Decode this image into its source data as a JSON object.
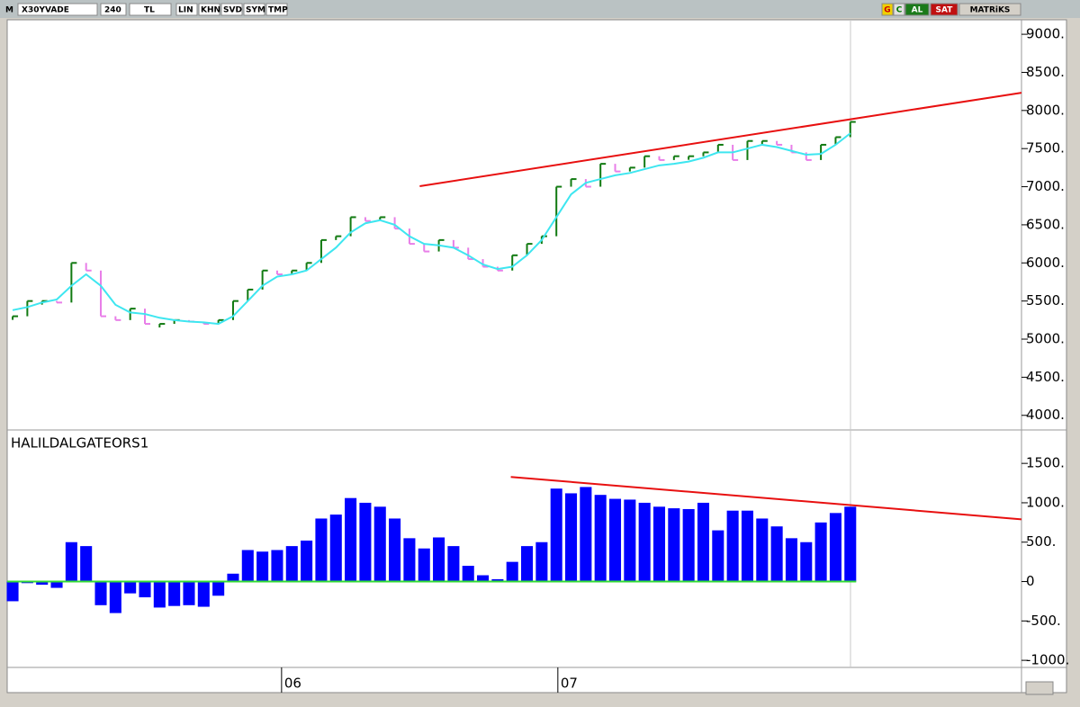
{
  "toolbar": {
    "menu": "M",
    "symbol": "X30YVADE",
    "period": "240",
    "currency": "TL",
    "buttons": [
      "LIN",
      "KHN",
      "SVD",
      "SYM",
      "TMP"
    ],
    "right_buttons": [
      "G",
      "C",
      "AL",
      "SAT",
      "MATRiKS"
    ]
  },
  "chart_data": [
    {
      "type": "ohlc",
      "xlim": [
        -0.37,
        68.65
      ],
      "ylim": [
        3820,
        9190
      ],
      "yticks": [
        {
          "value": 4000,
          "label": "4000."
        },
        {
          "value": 4500,
          "label": "4500."
        },
        {
          "value": 5000,
          "label": "5000."
        },
        {
          "value": 5500,
          "label": "5500."
        },
        {
          "value": 6000,
          "label": "6000."
        },
        {
          "value": 6500,
          "label": "6500."
        },
        {
          "value": 7000,
          "label": "7000."
        },
        {
          "value": 7500,
          "label": "7500."
        },
        {
          "value": 8000,
          "label": "8000."
        },
        {
          "value": 8500,
          "label": "8500."
        },
        {
          "value": 9000,
          "label": "9000."
        }
      ],
      "series": [
        {
          "color_up": "#117a11",
          "color_down": "#e87ee8",
          "values": [
            5300,
            5500,
            5500,
            5480,
            6000,
            5900,
            5300,
            5250,
            5400,
            5200,
            5200,
            5250,
            5230,
            5200,
            5250,
            5500,
            5650,
            5900,
            5850,
            5900,
            6000,
            6300,
            6350,
            6600,
            6550,
            6600,
            6450,
            6250,
            6150,
            6300,
            6200,
            6050,
            5950,
            5900,
            6100,
            6250,
            6350,
            7000,
            7100,
            7000,
            7300,
            7200,
            7250,
            7400,
            7350,
            7400,
            7400,
            7450,
            7550,
            7350,
            7600,
            7600,
            7550,
            7450,
            7350,
            7550,
            7650,
            7850
          ]
        },
        {
          "color": "#3ee6f0",
          "values": [
            5380,
            5420,
            5480,
            5520,
            5700,
            5850,
            5700,
            5450,
            5350,
            5330,
            5280,
            5250,
            5230,
            5220,
            5200,
            5300,
            5500,
            5700,
            5820,
            5850,
            5900,
            6050,
            6200,
            6400,
            6520,
            6560,
            6500,
            6350,
            6250,
            6230,
            6200,
            6100,
            5980,
            5920,
            5950,
            6100,
            6300,
            6600,
            6900,
            7050,
            7100,
            7150,
            7180,
            7230,
            7280,
            7300,
            7330,
            7380,
            7450,
            7450,
            7500,
            7550,
            7520,
            7470,
            7420,
            7430,
            7550,
            7700
          ]
        }
      ],
      "trendline": {
        "color": "#e81010",
        "x": [
          27.7,
          68.65
        ],
        "y": [
          7007,
          8233
        ]
      }
    },
    {
      "type": "bar",
      "title": "HALILDALGATEORS1",
      "color": "#0000ff",
      "zero_color": "#33dd33",
      "xlim": [
        -0.37,
        68.65
      ],
      "ylim": [
        -1090,
        1890
      ],
      "yticks": [
        {
          "value": -1000,
          "label": "-1000."
        },
        {
          "value": -500,
          "label": "-500."
        },
        0,
        {
          "value": 500,
          "label": "500."
        },
        {
          "value": 1000,
          "label": "1000."
        },
        {
          "value": 1500,
          "label": "1500."
        }
      ],
      "xticks": [
        {
          "value": 18.3,
          "label": "06"
        },
        {
          "value": 37.1,
          "label": "07"
        }
      ],
      "values": [
        -250,
        -20,
        -40,
        -80,
        500,
        450,
        -300,
        -400,
        -150,
        -200,
        -330,
        -310,
        -300,
        -320,
        -180,
        100,
        400,
        380,
        400,
        450,
        520,
        800,
        850,
        1060,
        1000,
        950,
        800,
        550,
        420,
        560,
        450,
        200,
        80,
        30,
        250,
        450,
        500,
        1180,
        1120,
        1200,
        1100,
        1050,
        1040,
        1000,
        950,
        930,
        920,
        1000,
        650,
        900,
        900,
        800,
        700,
        550,
        500,
        750,
        870,
        950
      ],
      "trendline": {
        "color": "#e81010",
        "x": [
          33.9,
          68.65
        ],
        "y": [
          1328,
          790
        ]
      }
    }
  ]
}
